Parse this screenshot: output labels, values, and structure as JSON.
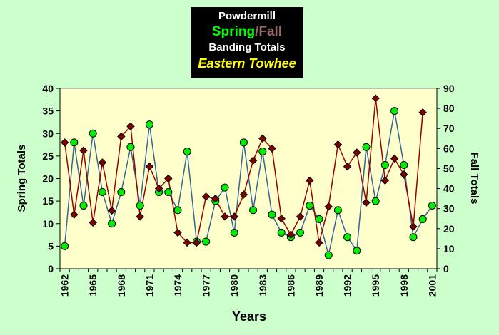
{
  "chart_data": {
    "type": "line",
    "title": {
      "line1": "Powdermill",
      "spring": "Spring",
      "slash": "/",
      "fall": "Fall",
      "line3": "Banding Totals",
      "line4": "Eastern Towhee"
    },
    "xlabel": "Years",
    "ylabel": "Spring Totals",
    "y2label": "Fall Totals",
    "ylim": [
      0,
      40
    ],
    "y2lim": [
      0,
      90
    ],
    "yticks": [
      "0",
      "5",
      "10",
      "15",
      "20",
      "25",
      "30",
      "35",
      "40"
    ],
    "y2ticks": [
      "0",
      "10",
      "20",
      "30",
      "40",
      "50",
      "60",
      "70",
      "80",
      "90"
    ],
    "xticklabels": [
      "1962",
      "1965",
      "1968",
      "1971",
      "1974",
      "1977",
      "1980",
      "1983",
      "1986",
      "1989",
      "1992",
      "1995",
      "1998",
      "2001"
    ],
    "grid": false,
    "legend": "none",
    "x": [
      1962,
      1963,
      1964,
      1965,
      1966,
      1967,
      1968,
      1969,
      1970,
      1971,
      1972,
      1973,
      1974,
      1975,
      1976,
      1977,
      1978,
      1979,
      1980,
      1981,
      1982,
      1983,
      1984,
      1985,
      1986,
      1987,
      1988,
      1989,
      1990,
      1991,
      1992,
      1993,
      1994,
      1995,
      1996,
      1997,
      1998,
      1999,
      2000,
      2001
    ],
    "series": [
      {
        "name": "Spring",
        "axis": "left",
        "color": "#00ee00",
        "line_color": "#336699",
        "values": [
          5,
          28,
          14,
          30,
          17,
          10,
          17,
          27,
          14,
          32,
          17,
          17,
          13,
          26,
          6,
          6,
          15,
          18,
          8,
          28,
          13,
          26,
          12,
          8,
          7,
          8,
          14,
          11,
          3,
          13,
          7,
          4,
          27,
          15,
          23,
          35,
          23,
          7,
          11,
          14
        ]
      },
      {
        "name": "Fall",
        "axis": "right",
        "color": "#800000",
        "line_color": "#990000",
        "values": [
          63,
          27,
          59,
          23,
          53,
          29,
          66,
          71,
          26,
          51,
          40,
          45,
          18,
          13,
          13,
          36,
          35,
          26,
          26,
          37,
          54,
          65,
          60,
          25,
          17,
          26,
          44,
          13,
          31,
          62,
          51,
          58,
          33,
          85,
          44,
          55,
          47,
          21,
          78,
          null
        ]
      }
    ],
    "colors": {
      "background": "#ccffcc",
      "plot_area": "#ffffcc",
      "title_box": "#000000",
      "spring_title": "#00ff00",
      "fall_title": "#996666",
      "species_title": "#ffff00"
    }
  }
}
